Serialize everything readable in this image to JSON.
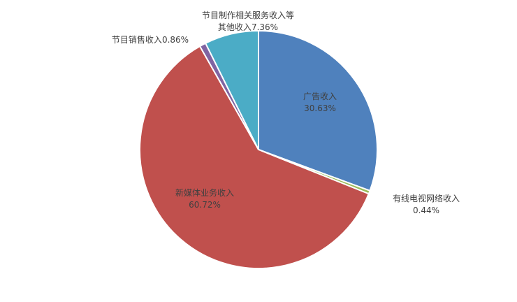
{
  "chart_data": {
    "type": "pie",
    "categories": [
      "广告收入",
      "有线电视网络收入",
      "新媒体业务收入",
      "节目销售收入",
      "节目制作相关服务收入等其他收入"
    ],
    "values": [
      30.63,
      0.44,
      60.72,
      0.86,
      7.36
    ],
    "value_labels": [
      "30.63%",
      "0.44%",
      "60.72%",
      "0.86%",
      "7.36%"
    ],
    "colors": [
      "#4f81bd",
      "#9bbb59",
      "#c0504d",
      "#8064a2",
      "#4bacc6"
    ]
  }
}
